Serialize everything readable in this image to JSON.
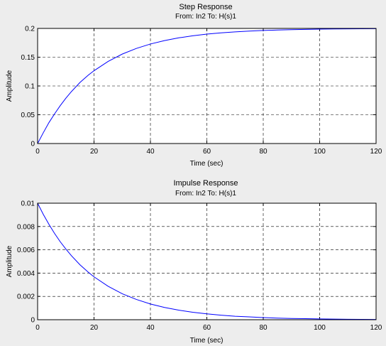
{
  "chart_data": [
    {
      "type": "line",
      "title": "Step Response",
      "subtitle": "From: In2  To: H(s)1",
      "xlabel": "Time (sec)",
      "ylabel": "Amplitude",
      "xlim": [
        0,
        120
      ],
      "ylim": [
        0,
        0.2
      ],
      "xticks": [
        "0",
        "20",
        "40",
        "60",
        "80",
        "100",
        "120"
      ],
      "yticks": [
        "0",
        "0.05",
        "0.1",
        "0.15",
        "0.2"
      ],
      "grid": true,
      "line_color": "#0000ff",
      "series": [
        {
          "x": [
            0,
            2,
            4,
            6,
            8,
            10,
            12,
            15,
            18,
            20,
            25,
            30,
            35,
            40,
            45,
            50,
            55,
            60,
            65,
            70,
            75,
            80,
            85,
            90,
            95,
            100,
            105,
            110,
            115,
            120
          ],
          "values": [
            0,
            0.0186,
            0.0362,
            0.0514,
            0.0657,
            0.0786,
            0.0903,
            0.106,
            0.119,
            0.1265,
            0.1427,
            0.1554,
            0.1652,
            0.1729,
            0.1789,
            0.1836,
            0.1872,
            0.1901,
            0.1923,
            0.194,
            0.1954,
            0.1964,
            0.1972,
            0.1978,
            0.1983,
            0.1987,
            0.199,
            0.1992,
            0.1994,
            0.1995
          ]
        }
      ]
    },
    {
      "type": "line",
      "title": "Impulse Response",
      "subtitle": "From: In2  To: H(s)1",
      "xlabel": "Time (sec)",
      "ylabel": "Amplitude",
      "xlim": [
        0,
        120
      ],
      "ylim": [
        0,
        0.01
      ],
      "xticks": [
        "0",
        "20",
        "40",
        "60",
        "80",
        "100",
        "120"
      ],
      "yticks": [
        "0",
        "0.002",
        "0.004",
        "0.006",
        "0.008",
        "0.01"
      ],
      "grid": true,
      "line_color": "#0000ff",
      "series": [
        {
          "x": [
            0,
            2,
            4,
            6,
            8,
            10,
            12,
            15,
            18,
            20,
            25,
            30,
            35,
            40,
            45,
            50,
            55,
            60,
            65,
            70,
            75,
            80,
            85,
            90,
            95,
            100,
            105,
            110,
            115,
            120
          ],
          "values": [
            0.01,
            0.00905,
            0.00819,
            0.00741,
            0.0067,
            0.00607,
            0.00549,
            0.00472,
            0.00407,
            0.00368,
            0.00287,
            0.00223,
            0.00174,
            0.00135,
            0.00105,
            0.00082,
            0.00064,
            0.0005,
            0.00039,
            0.0003,
            0.00024,
            0.00018,
            0.00014,
            0.00011,
            9e-05,
            7e-05,
            5e-05,
            4e-05,
            3e-05,
            2e-05
          ]
        }
      ]
    }
  ]
}
